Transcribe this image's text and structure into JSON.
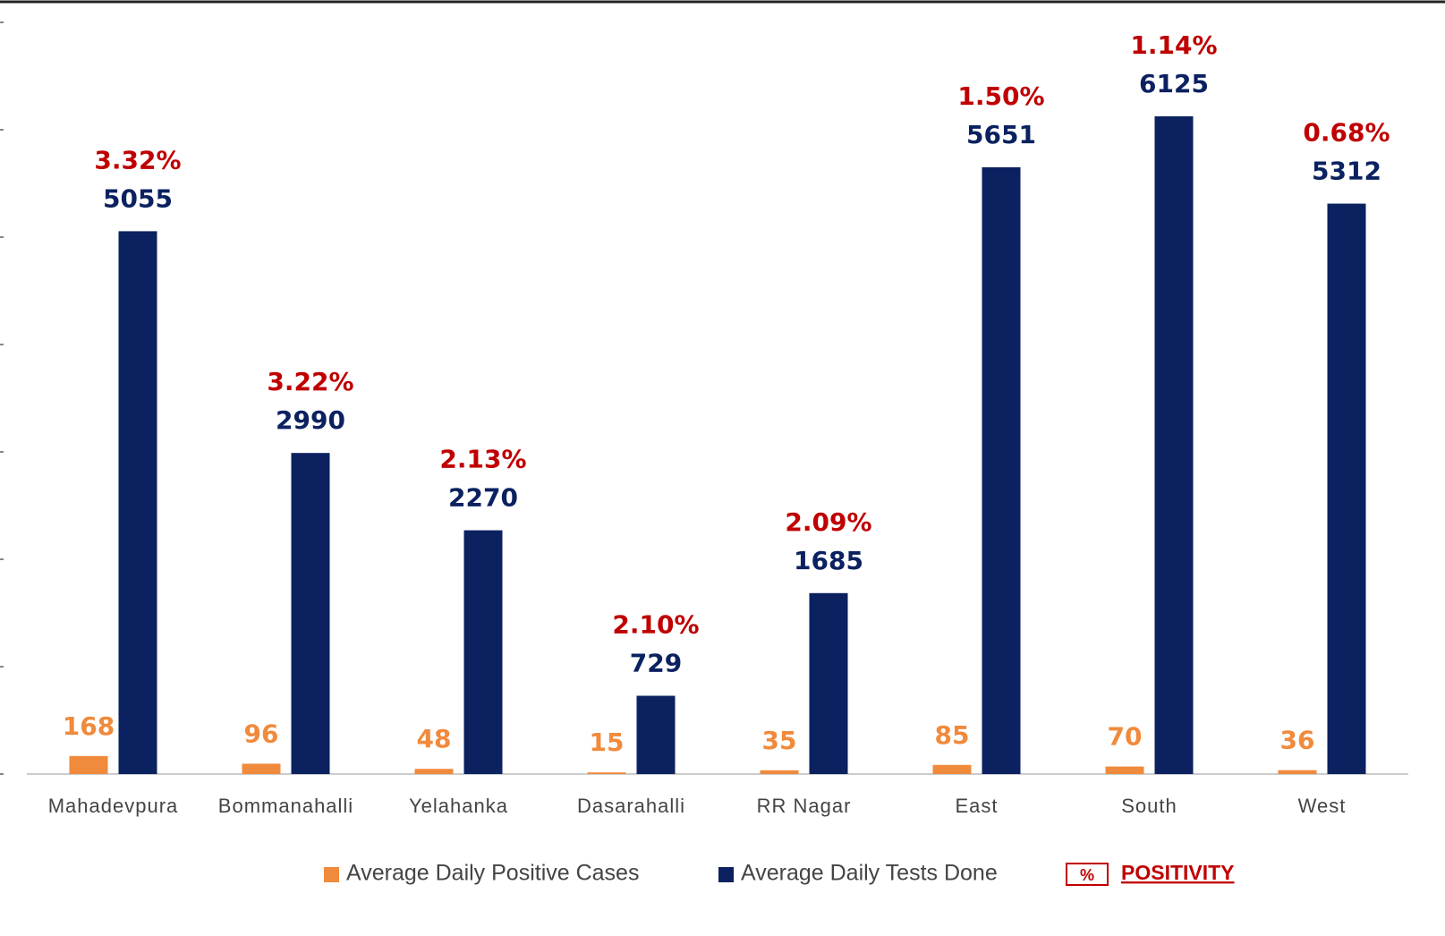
{
  "chart_data": {
    "type": "bar",
    "categories": [
      "Mahadevpura",
      "Bommanahalli",
      "Yelahanka",
      "Dasarahalli",
      "RR Nagar",
      "East",
      "South",
      "West"
    ],
    "series": [
      {
        "name": "Average Daily Positive Cases",
        "color": "#f08a3c",
        "values": [
          168,
          96,
          48,
          15,
          35,
          85,
          70,
          36
        ]
      },
      {
        "name": "Average Daily Tests Done",
        "color": "#0b2160",
        "values": [
          5055,
          2990,
          2270,
          729,
          1685,
          5651,
          6125,
          5312
        ]
      }
    ],
    "positivity": {
      "name": "POSITIVITY",
      "marker_label": "%",
      "color": "#c00000",
      "values": [
        3.32,
        3.22,
        2.13,
        2.1,
        2.09,
        1.5,
        1.14,
        0.68
      ],
      "value_labels": [
        "3.32%",
        "3.22%",
        "2.13%",
        "2.10%",
        "2.09%",
        "1.50%",
        "1.14%",
        "0.68%"
      ]
    },
    "ylim": [
      0,
      7000
    ],
    "yticks": [
      0,
      1000,
      2000,
      3000,
      4000,
      5000,
      6000,
      7000
    ]
  }
}
